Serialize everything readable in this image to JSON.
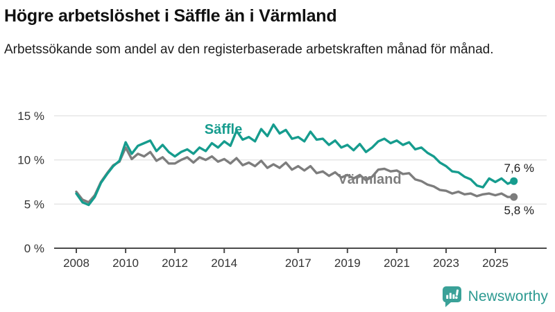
{
  "chart_data": {
    "type": "line",
    "title": "Högre arbetslöshet i Säffle än i Värmland",
    "subtitle": "Arbetssökande som andel av den registerbaserade arbetskraften månad för månad.",
    "unit": "%",
    "grid": "horizontal",
    "legend_position": "inline-labels",
    "ylim": [
      0,
      15
    ],
    "x_start": 2008,
    "x_step": 0.25,
    "yticks": [
      {
        "value": 0,
        "label": "0 %"
      },
      {
        "value": 5,
        "label": "5 %"
      },
      {
        "value": 10,
        "label": "10 %"
      },
      {
        "value": 15,
        "label": "15 %"
      }
    ],
    "xticks": [
      {
        "value": 2008,
        "label": "2008"
      },
      {
        "value": 2010,
        "label": "2010"
      },
      {
        "value": 2012,
        "label": "2012"
      },
      {
        "value": 2014,
        "label": "2014"
      },
      {
        "value": 2017,
        "label": "2017"
      },
      {
        "value": 2019,
        "label": "2019"
      },
      {
        "value": 2021,
        "label": "2021"
      },
      {
        "value": 2023,
        "label": "2023"
      },
      {
        "value": 2025,
        "label": "2025"
      }
    ],
    "series": [
      {
        "name": "Säffle",
        "color": "#169c8e",
        "end_label": "7,6 %",
        "end_value": 7.6,
        "values": [
          6.2,
          5.2,
          4.9,
          5.8,
          7.4,
          8.4,
          9.3,
          9.9,
          12.0,
          10.7,
          11.6,
          11.9,
          12.2,
          11.0,
          11.7,
          10.9,
          10.4,
          10.9,
          11.2,
          10.7,
          11.4,
          11.0,
          11.9,
          11.4,
          12.1,
          11.6,
          13.3,
          12.3,
          12.6,
          12.1,
          13.5,
          12.7,
          14.0,
          13.0,
          13.4,
          12.4,
          12.6,
          12.1,
          13.2,
          12.3,
          12.4,
          11.7,
          12.2,
          11.4,
          11.7,
          11.1,
          11.8,
          10.9,
          11.4,
          12.1,
          12.4,
          11.9,
          12.2,
          11.7,
          12.0,
          11.2,
          11.4,
          10.8,
          10.4,
          9.7,
          9.3,
          8.7,
          8.6,
          8.1,
          7.8,
          7.1,
          6.9,
          7.9,
          7.5,
          7.9,
          7.3,
          7.6
        ]
      },
      {
        "name": "Värmland",
        "color": "#7d7d7d",
        "end_label": "5,8 %",
        "end_value": 5.8,
        "values": [
          6.4,
          5.5,
          5.2,
          6.0,
          7.5,
          8.5,
          9.4,
          9.8,
          11.4,
          10.1,
          10.7,
          10.4,
          10.9,
          9.9,
          10.3,
          9.6,
          9.6,
          10.0,
          10.3,
          9.7,
          10.3,
          10.0,
          10.4,
          9.8,
          10.1,
          9.6,
          10.2,
          9.4,
          9.7,
          9.3,
          9.9,
          9.1,
          9.5,
          9.1,
          9.7,
          8.9,
          9.3,
          8.8,
          9.3,
          8.5,
          8.7,
          8.2,
          8.6,
          8.0,
          8.3,
          7.9,
          8.3,
          7.7,
          8.1,
          8.9,
          9.0,
          8.7,
          8.8,
          8.4,
          8.5,
          7.8,
          7.6,
          7.2,
          7.0,
          6.6,
          6.5,
          6.2,
          6.4,
          6.1,
          6.2,
          5.9,
          6.1,
          6.2,
          6.0,
          6.2,
          5.8,
          5.8
        ]
      }
    ]
  },
  "footer": {
    "brand": "Newsworthy"
  }
}
